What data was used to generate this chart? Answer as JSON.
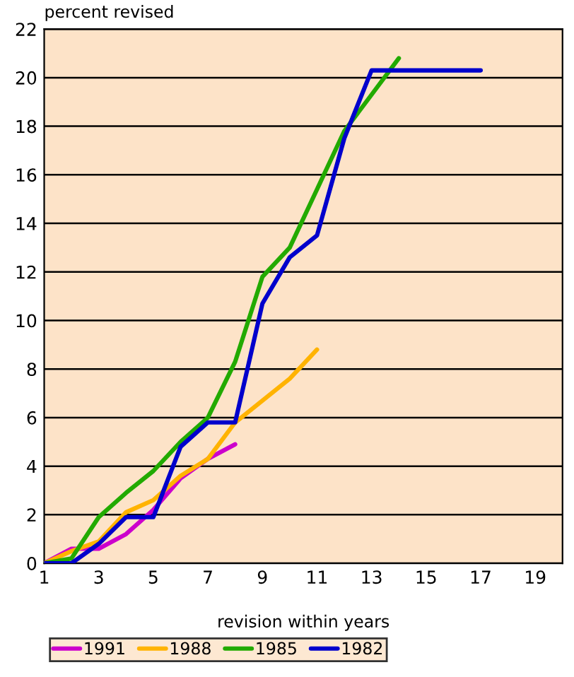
{
  "chart_data": {
    "type": "line",
    "ylabel": "percent revised",
    "xlabel": "revision within years",
    "xlim": [
      1,
      20
    ],
    "xticks": [
      1,
      3,
      5,
      7,
      9,
      11,
      13,
      15,
      17,
      19
    ],
    "ylim": [
      0,
      22
    ],
    "yticks": [
      0,
      2,
      4,
      6,
      8,
      10,
      12,
      14,
      16,
      18,
      20,
      22
    ],
    "grid": "y",
    "legend": "bottom",
    "marker": "none",
    "line_style": "solid",
    "series": [
      {
        "name": "1991",
        "color": "#cc00cc",
        "x": [
          1,
          2,
          3,
          4,
          5,
          6,
          7,
          8
        ],
        "values": [
          0,
          0.6,
          0.6,
          1.2,
          2.2,
          3.5,
          4.3,
          4.9
        ]
      },
      {
        "name": "1988",
        "color": "#ffb300",
        "x": [
          1,
          2,
          3,
          4,
          5,
          6,
          7,
          8,
          9,
          10,
          11
        ],
        "values": [
          0,
          0.5,
          0.9,
          2.1,
          2.6,
          3.6,
          4.3,
          5.8,
          6.7,
          7.6,
          8.8
        ]
      },
      {
        "name": "1985",
        "color": "#22aa00",
        "x": [
          1,
          2,
          3,
          4,
          5,
          6,
          7,
          8,
          9,
          10,
          11,
          12,
          13,
          14
        ],
        "values": [
          0,
          0.2,
          1.9,
          2.9,
          3.8,
          5.0,
          6.0,
          8.3,
          11.8,
          13.0,
          15.4,
          17.8,
          19.3,
          20.8
        ]
      },
      {
        "name": "1982",
        "color": "#0000cc",
        "x": [
          1,
          2,
          3,
          4,
          5,
          6,
          7,
          8,
          9,
          10,
          11,
          12,
          13,
          14,
          15,
          16,
          17
        ],
        "values": [
          0,
          0,
          0.8,
          1.9,
          1.9,
          4.8,
          5.8,
          5.8,
          10.7,
          12.6,
          13.5,
          17.5,
          20.3,
          20.3,
          20.3,
          20.3,
          20.3
        ]
      }
    ]
  }
}
